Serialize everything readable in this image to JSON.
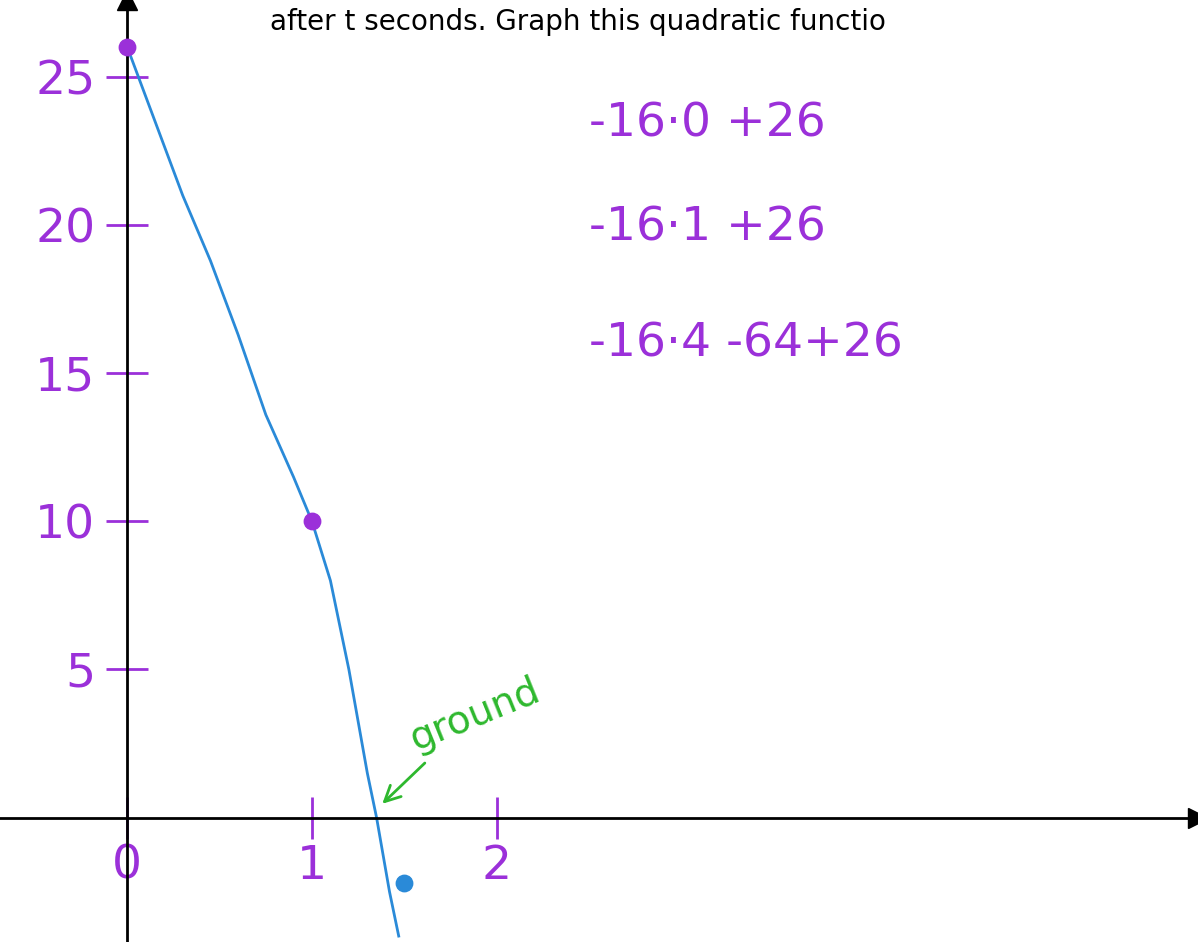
{
  "chart_data": {
    "type": "line",
    "title": "after t seconds. Graph this quadratic functio",
    "xlim": [
      -0.69,
      5.8
    ],
    "ylim": [
      -4.2,
      27.6
    ],
    "xticks": [
      0,
      1,
      2
    ],
    "yticks": [
      5,
      10,
      15,
      20,
      25
    ],
    "tick_color": "#9b30d9",
    "grid": false,
    "series": [
      {
        "type": "line",
        "color": "#2a8ad8",
        "line_style": "solid",
        "x": [
          0,
          0.15,
          0.3,
          0.45,
          0.6,
          0.75,
          0.9,
          1.0,
          1.1,
          1.2,
          1.3,
          1.35,
          1.42,
          1.47
        ],
        "values": [
          26,
          23.5,
          21,
          18.8,
          16.3,
          13.6,
          11.5,
          10,
          8,
          5,
          1.5,
          0,
          -2.5,
          -4
        ]
      },
      {
        "type": "scatter",
        "color": "#9b30d9",
        "marker": "circle",
        "x": [
          0,
          1
        ],
        "values": [
          26,
          10
        ]
      },
      {
        "type": "scatter",
        "color": "#2a8ad8",
        "marker": "circle",
        "x": [
          1.5
        ],
        "values": [
          -2.2
        ]
      }
    ],
    "annotations": [
      {
        "text": "-16·0 +26",
        "color": "#9b30d9"
      },
      {
        "text": "-16·1 +26",
        "color": "#9b30d9"
      },
      {
        "text": "-16·4 -64+26",
        "color": "#9b30d9"
      },
      {
        "text": "ground",
        "color": "#2eb82e"
      }
    ]
  }
}
